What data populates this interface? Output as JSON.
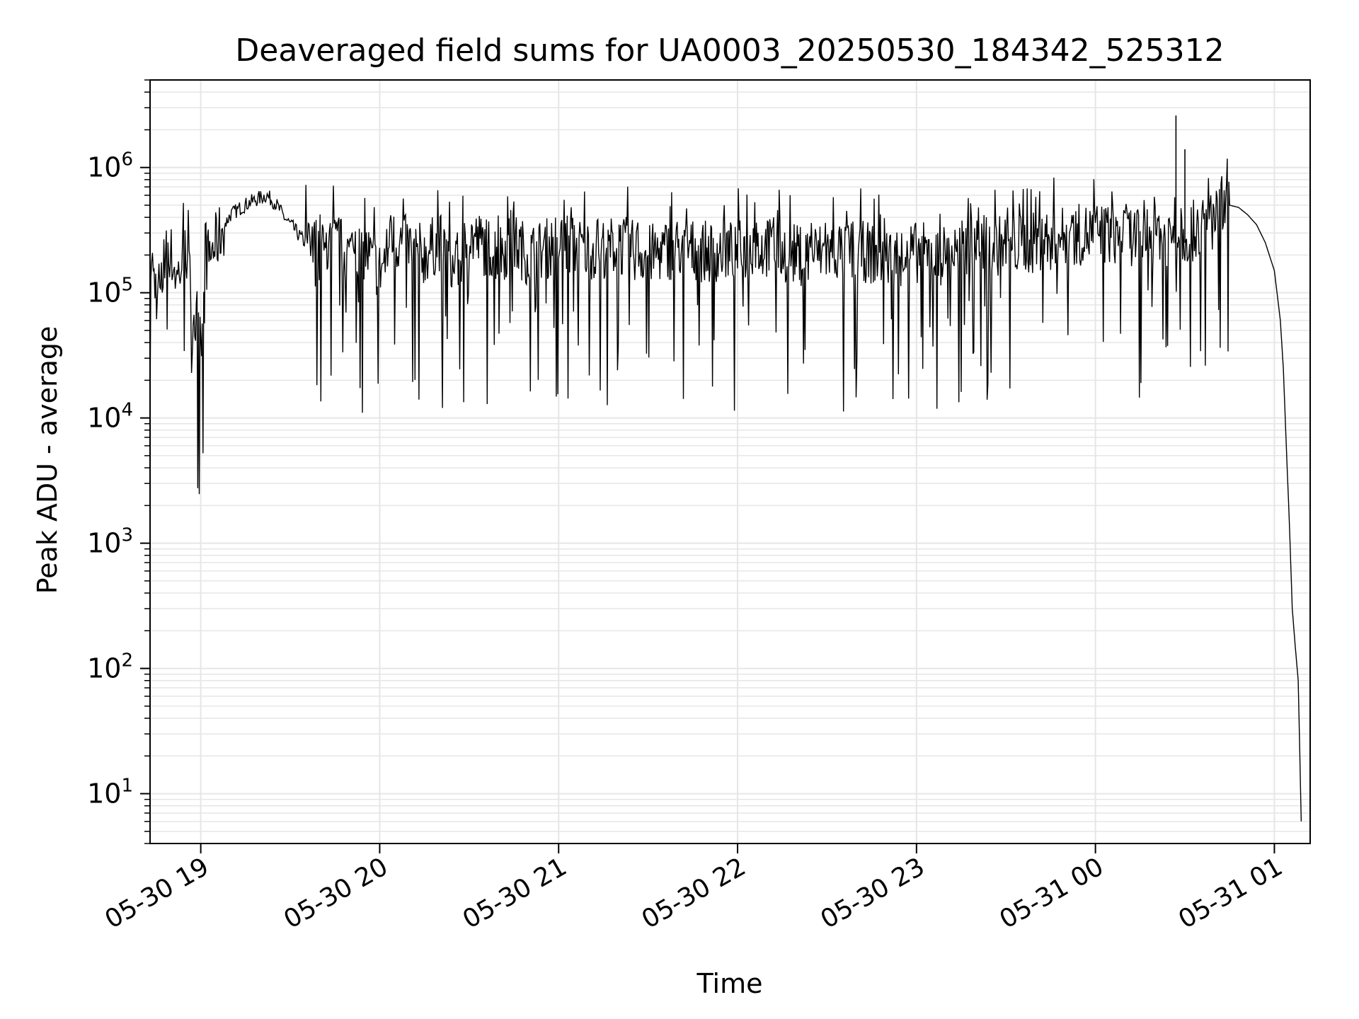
{
  "chart_data": {
    "type": "line",
    "title": "Deaveraged field sums for UA0003_20250530_184342_525312",
    "xlabel": "Time",
    "ylabel": "Peak ADU - average",
    "yscale": "log",
    "ylim": [
      4,
      5000000
    ],
    "xlim": [
      "2025-05-30 18:43",
      "2025-05-31 01:12"
    ],
    "grid": true,
    "line_color": "#000000",
    "grid_color": "#e6e6e6",
    "x_ticks": [
      "2025-05-30 19:00",
      "2025-05-30 20:00",
      "2025-05-30 21:00",
      "2025-05-30 22:00",
      "2025-05-30 23:00",
      "2025-05-31 00:00",
      "2025-05-31 01:00"
    ],
    "x_tick_labels": [
      "05-30 19",
      "05-30 20",
      "05-30 21",
      "05-30 22",
      "05-30 23",
      "05-31 00",
      "05-31 01"
    ],
    "y_tick_labels": [
      {
        "value": 10,
        "base": "10",
        "exp": "1"
      },
      {
        "value": 100,
        "base": "10",
        "exp": "2"
      },
      {
        "value": 1000,
        "base": "10",
        "exp": "3"
      },
      {
        "value": 10000,
        "base": "10",
        "exp": "4"
      },
      {
        "value": 100000,
        "base": "10",
        "exp": "5"
      },
      {
        "value": 1000000,
        "base": "10",
        "exp": "6"
      }
    ],
    "series": [
      {
        "x": [
          "2025-05-30 18:43",
          "2025-05-30 18:46",
          "2025-05-30 18:49",
          "2025-05-30 18:52",
          "2025-05-30 18:55",
          "2025-05-30 18:58",
          "2025-05-30 19:00",
          "2025-05-30 19:02",
          "2025-05-30 19:04",
          "2025-05-30 19:06",
          "2025-05-30 19:08",
          "2025-05-30 19:10",
          "2025-05-30 19:13",
          "2025-05-30 19:16",
          "2025-05-30 19:19",
          "2025-05-30 19:22",
          "2025-05-30 19:25",
          "2025-05-30 19:28",
          "2025-05-30 19:31",
          "2025-05-30 19:35",
          "2025-05-30 19:40",
          "2025-05-30 19:45",
          "2025-05-30 19:50",
          "2025-05-30 19:55",
          "2025-05-30 20:00",
          "2025-05-30 20:05",
          "2025-05-30 20:10",
          "2025-05-30 20:15",
          "2025-05-30 20:20",
          "2025-05-30 20:25",
          "2025-05-30 20:30",
          "2025-05-30 20:35",
          "2025-05-30 20:40",
          "2025-05-30 20:45",
          "2025-05-30 20:50",
          "2025-05-30 20:55",
          "2025-05-30 21:00",
          "2025-05-30 21:10",
          "2025-05-30 21:20",
          "2025-05-30 21:30",
          "2025-05-30 21:40",
          "2025-05-30 21:50",
          "2025-05-30 22:00",
          "2025-05-30 22:10",
          "2025-05-30 22:20",
          "2025-05-30 22:30",
          "2025-05-30 22:40",
          "2025-05-30 22:50",
          "2025-05-30 23:00",
          "2025-05-30 23:10",
          "2025-05-30 23:20",
          "2025-05-30 23:30",
          "2025-05-30 23:40",
          "2025-05-30 23:50",
          "2025-05-31 00:00",
          "2025-05-31 00:10",
          "2025-05-31 00:20",
          "2025-05-31 00:30",
          "2025-05-31 00:35",
          "2025-05-31 00:40",
          "2025-05-31 00:45",
          "2025-05-31 00:48",
          "2025-05-31 00:51",
          "2025-05-31 00:54",
          "2025-05-31 00:57",
          "2025-05-31 01:00",
          "2025-05-31 01:02",
          "2025-05-31 01:03",
          "2025-05-31 01:04",
          "2025-05-31 01:05",
          "2025-05-31 01:06",
          "2025-05-31 01:07",
          "2025-05-31 01:08",
          "2025-05-31 01:09"
        ],
        "y": [
          200000,
          80000,
          250000,
          130000,
          220000,
          60000,
          35000,
          180000,
          220000,
          280000,
          350000,
          420000,
          470000,
          520000,
          560000,
          600000,
          520000,
          400000,
          330000,
          250000,
          180000,
          250000,
          200000,
          220000,
          150000,
          260000,
          230000,
          200000,
          260000,
          150000,
          280000,
          240000,
          210000,
          250000,
          200000,
          220000,
          250000,
          220000,
          240000,
          200000,
          230000,
          210000,
          220000,
          230000,
          200000,
          210000,
          220000,
          190000,
          210000,
          200000,
          230000,
          240000,
          250000,
          280000,
          300000,
          290000,
          280000,
          300000,
          320000,
          380000,
          500000,
          480000,
          420000,
          350000,
          250000,
          150000,
          60000,
          25000,
          6000,
          1500,
          300,
          150,
          80,
          6
        ]
      }
    ]
  }
}
